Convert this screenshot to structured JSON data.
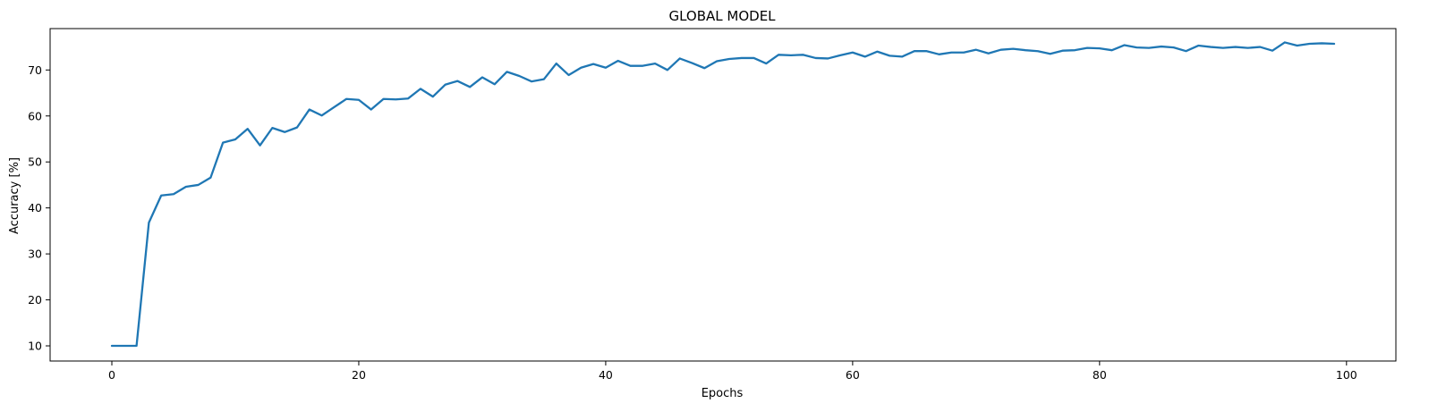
{
  "chart_data": {
    "type": "line",
    "title": "GLOBAL MODEL",
    "xlabel": "Epochs",
    "ylabel": "Accuracy [%]",
    "xlim": [
      -5,
      104
    ],
    "ylim": [
      6.7,
      79.0
    ],
    "xticks": [
      0,
      20,
      40,
      60,
      80,
      100
    ],
    "yticks": [
      10,
      20,
      30,
      40,
      50,
      60,
      70
    ],
    "grid": false,
    "line_color": "#1f77b4",
    "x": [
      0,
      1,
      2,
      3,
      4,
      5,
      6,
      7,
      8,
      9,
      10,
      11,
      12,
      13,
      14,
      15,
      16,
      17,
      18,
      19,
      20,
      21,
      22,
      23,
      24,
      25,
      26,
      27,
      28,
      29,
      30,
      31,
      32,
      33,
      34,
      35,
      36,
      37,
      38,
      39,
      40,
      41,
      42,
      43,
      44,
      45,
      46,
      47,
      48,
      49,
      50,
      51,
      52,
      53,
      54,
      55,
      56,
      57,
      58,
      59,
      60,
      61,
      62,
      63,
      64,
      65,
      66,
      67,
      68,
      69,
      70,
      71,
      72,
      73,
      74,
      75,
      76,
      77,
      78,
      79,
      80,
      81,
      82,
      83,
      84,
      85,
      86,
      87,
      88,
      89,
      90,
      91,
      92,
      93,
      94,
      95,
      96,
      97,
      98,
      99
    ],
    "series": [
      {
        "values": [
          10.0,
          10.0,
          10.0,
          36.8,
          42.7,
          43.0,
          44.6,
          45.0,
          46.6,
          54.2,
          54.9,
          57.2,
          53.6,
          57.4,
          56.5,
          57.5,
          61.4,
          60.1,
          61.9,
          63.7,
          63.5,
          61.4,
          63.7,
          63.6,
          63.8,
          65.9,
          64.2,
          66.8,
          67.6,
          66.3,
          68.4,
          66.9,
          69.6,
          68.7,
          67.5,
          68.0,
          71.4,
          68.9,
          70.5,
          71.3,
          70.5,
          72.0,
          70.9,
          70.9,
          71.4,
          70.0,
          72.5,
          71.5,
          70.4,
          71.9,
          72.4,
          72.6,
          72.6,
          71.4,
          73.3,
          73.2,
          73.3,
          72.6,
          72.5,
          73.2,
          73.8,
          72.9,
          74.0,
          73.1,
          72.9,
          74.1,
          74.1,
          73.4,
          73.8,
          73.8,
          74.4,
          73.6,
          74.4,
          74.6,
          74.3,
          74.1,
          73.5,
          74.2,
          74.3,
          74.8,
          74.7,
          74.3,
          75.4,
          74.9,
          74.8,
          75.1,
          74.9,
          74.1,
          75.3,
          75.0,
          74.8,
          75.0,
          74.8,
          75.0,
          74.2,
          76.0,
          75.3,
          75.7,
          75.8,
          75.7
        ]
      }
    ]
  }
}
